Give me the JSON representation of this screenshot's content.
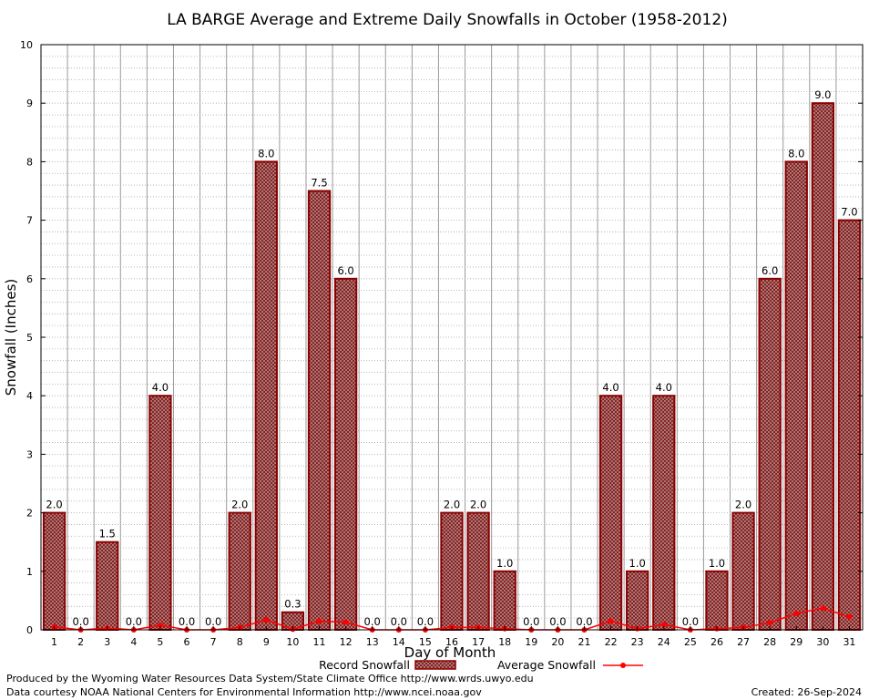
{
  "chart_data": {
    "type": "bar",
    "title": "LA BARGE Average and Extreme Daily Snowfalls in October (1958-2012)",
    "xlabel": "Day of Month",
    "ylabel": "Snowfall (Inches)",
    "ylim": [
      0,
      10
    ],
    "yticks": [
      0,
      1,
      2,
      3,
      4,
      5,
      6,
      7,
      8,
      9,
      10
    ],
    "grid": true,
    "legend_position": "bottom",
    "categories": [
      "1",
      "2",
      "3",
      "4",
      "5",
      "6",
      "7",
      "8",
      "9",
      "10",
      "11",
      "12",
      "13",
      "14",
      "15",
      "16",
      "17",
      "18",
      "19",
      "20",
      "21",
      "22",
      "23",
      "24",
      "25",
      "26",
      "27",
      "28",
      "29",
      "30",
      "31"
    ],
    "series": [
      {
        "name": "Record Snowfall",
        "type": "bar",
        "color": "#8b0000",
        "values": [
          2.0,
          0.0,
          1.5,
          0.0,
          4.0,
          0.0,
          0.0,
          2.0,
          8.0,
          0.3,
          7.5,
          6.0,
          0.0,
          0.0,
          0.0,
          2.0,
          2.0,
          1.0,
          0.0,
          0.0,
          0.0,
          4.0,
          1.0,
          4.0,
          0.0,
          1.0,
          2.0,
          6.0,
          8.0,
          9.0,
          7.0
        ],
        "labels": [
          "2.0",
          "0.0",
          "1.5",
          "0.0",
          "4.0",
          "0.0",
          "0.0",
          "2.0",
          "8.0",
          "0.3",
          "7.5",
          "6.0",
          "0.0",
          "0.0",
          "0.0",
          "2.0",
          "2.0",
          "1.0",
          "0.0",
          "0.0",
          "0.0",
          "4.0",
          "1.0",
          "4.0",
          "0.0",
          "1.0",
          "2.0",
          "6.0",
          "8.0",
          "9.0",
          "7.0"
        ]
      },
      {
        "name": "Average Snowfall",
        "type": "line",
        "color": "#ff0000",
        "values": [
          0.05,
          0.0,
          0.03,
          0.0,
          0.08,
          0.0,
          0.0,
          0.04,
          0.17,
          0.01,
          0.15,
          0.13,
          0.0,
          0.0,
          0.0,
          0.04,
          0.04,
          0.02,
          0.0,
          0.0,
          0.0,
          0.15,
          0.02,
          0.09,
          0.0,
          0.02,
          0.04,
          0.12,
          0.28,
          0.37,
          0.22
        ]
      }
    ]
  },
  "footer": {
    "line1": "Produced by the Wyoming Water Resources Data System/State Climate Office http://www.wrds.uwyo.edu",
    "line2": "Data courtesy NOAA National Centers for Environmental Information http://www.ncei.noaa.gov",
    "created": "Created:  26-Sep-2024"
  }
}
